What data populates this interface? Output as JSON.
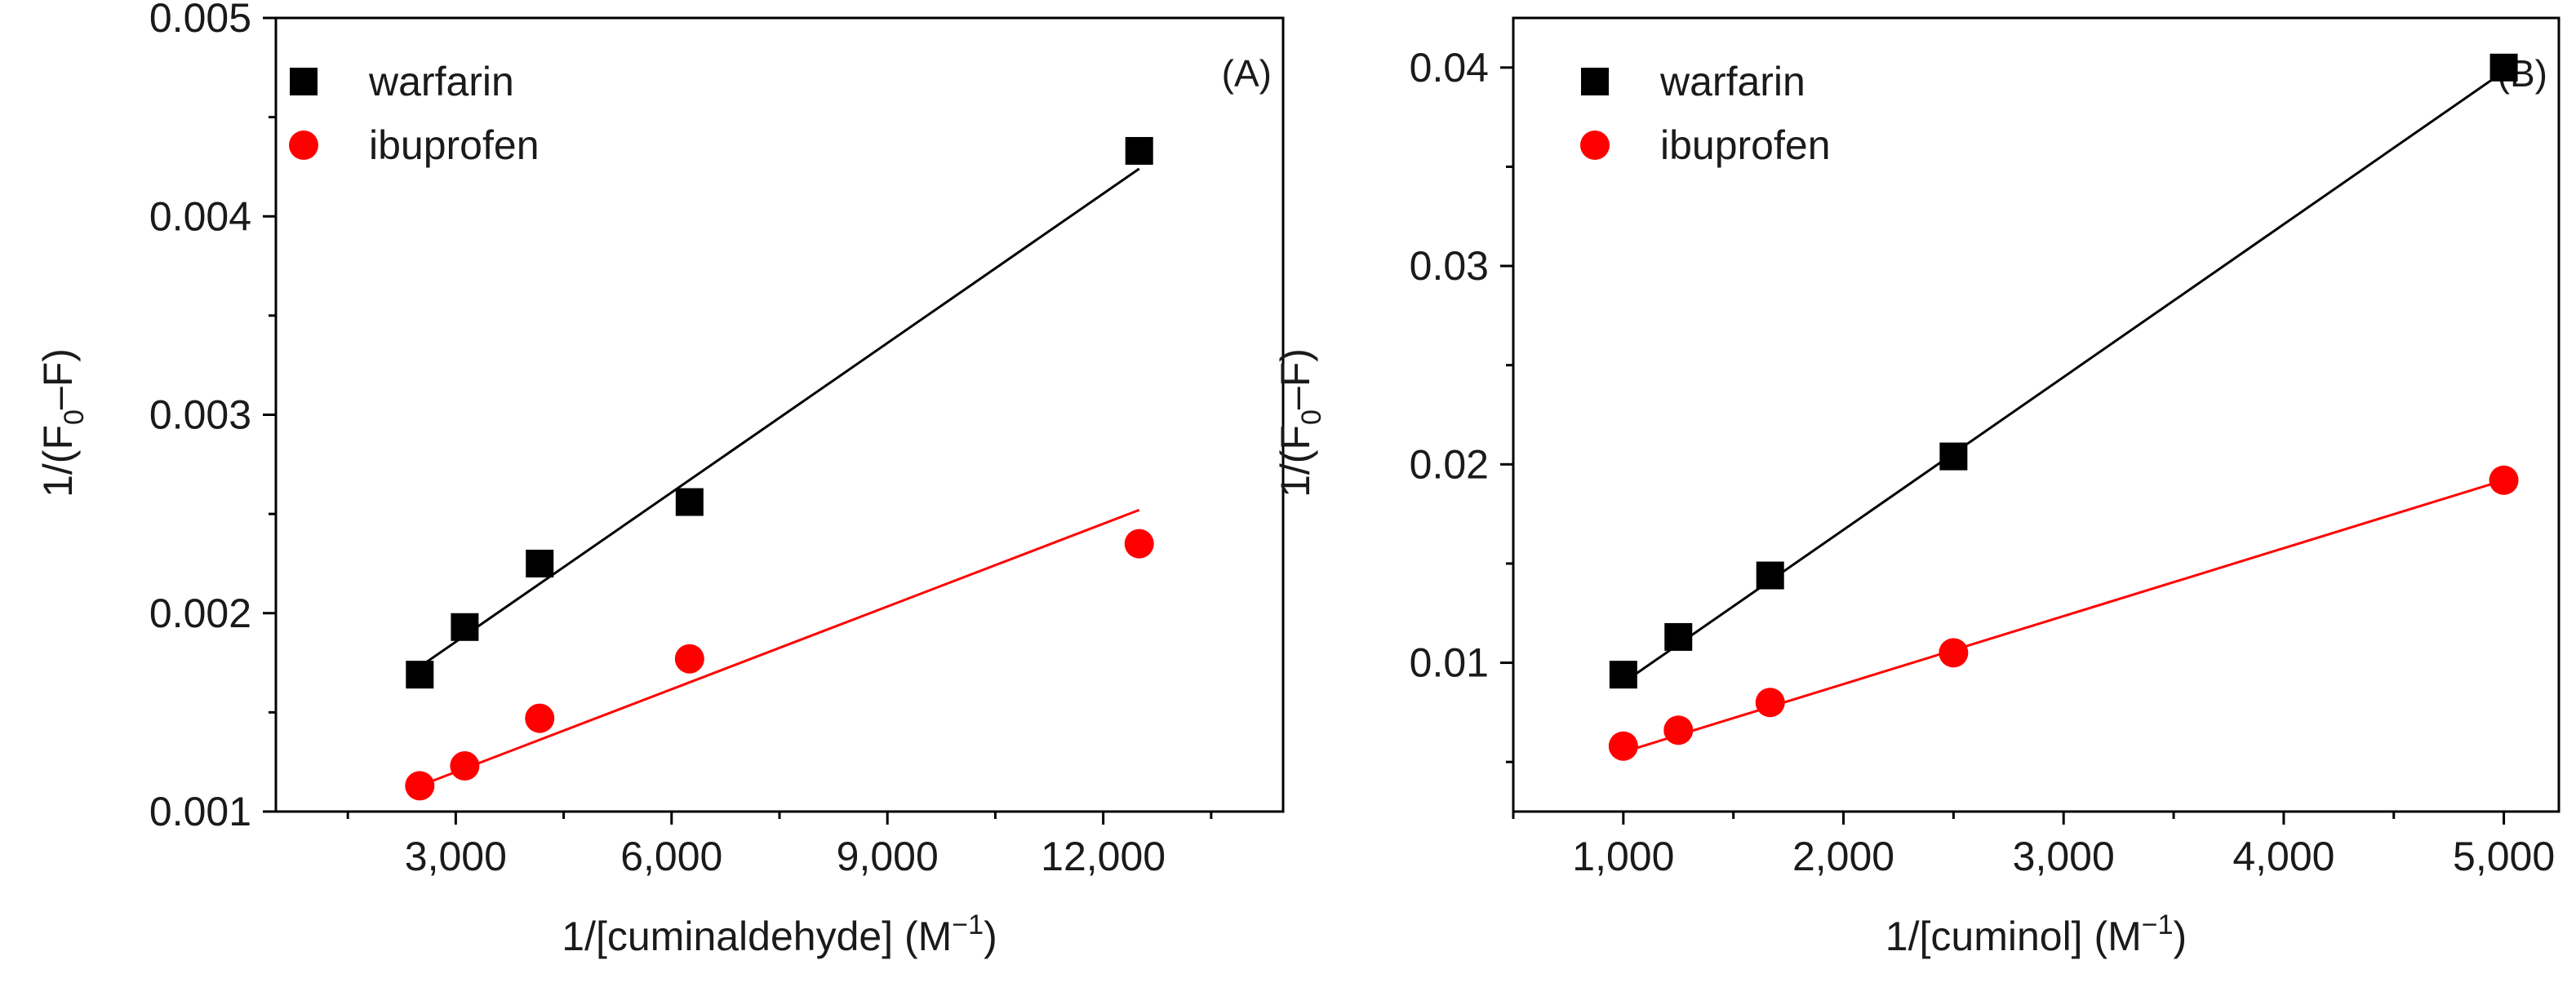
{
  "chart_data": [
    {
      "type": "scatter",
      "panel_label": "(A)",
      "xlabel": {
        "base": "1/[cuminaldehyde] (M",
        "sup": "−1",
        "close": ")"
      },
      "ylabel": {
        "base": "1/(F",
        "sub": "0",
        "rest": "–F)"
      },
      "xlim": [
        500,
        14500
      ],
      "ylim": [
        0.001,
        0.005
      ],
      "xticks": [
        3000,
        6000,
        9000,
        12000
      ],
      "xtick_labels": [
        "3,000",
        "6,000",
        "9,000",
        "12,000"
      ],
      "yticks": [
        0.001,
        0.002,
        0.003,
        0.004,
        0.005
      ],
      "ytick_labels": [
        "0.001",
        "0.002",
        "0.003",
        "0.004",
        "0.005"
      ],
      "legend_position": "top-left",
      "series": [
        {
          "name": "warfarin",
          "marker": "square",
          "color": "#000000",
          "x": [
            2500,
            3125,
            4167,
            6250,
            12500
          ],
          "y": [
            0.00169,
            0.00193,
            0.00225,
            0.00256,
            0.00433
          ],
          "fit": {
            "x": [
              2500,
              12500
            ],
            "y": [
              0.00173,
              0.00424
            ]
          }
        },
        {
          "name": "ibuprofen",
          "marker": "circle",
          "color": "#ff0000",
          "x": [
            2500,
            3125,
            4167,
            6250,
            12500
          ],
          "y": [
            0.00113,
            0.00123,
            0.00147,
            0.00177,
            0.00235
          ],
          "fit": {
            "x": [
              2500,
              12500
            ],
            "y": [
              0.00113,
              0.00252
            ]
          }
        }
      ]
    },
    {
      "type": "scatter",
      "panel_label": "(B)",
      "xlabel": {
        "base": "1/[cuminol] (M",
        "sup": "−1",
        "close": ")"
      },
      "ylabel": {
        "base": "1/(F",
        "sub": "0",
        "rest": "–F)"
      },
      "xlim": [
        500,
        5250
      ],
      "ylim": [
        0.0025,
        0.0425
      ],
      "xticks": [
        1000,
        2000,
        3000,
        4000,
        5000
      ],
      "xtick_labels": [
        "1,000",
        "2,000",
        "3,000",
        "4,000",
        "5,000"
      ],
      "yticks": [
        0.01,
        0.02,
        0.03,
        0.04
      ],
      "ytick_labels": [
        "0.01",
        "0.02",
        "0.03",
        "0.04"
      ],
      "legend_position": "top-left",
      "series": [
        {
          "name": "warfarin",
          "marker": "square",
          "color": "#000000",
          "x": [
            1000,
            1250,
            1667,
            2500,
            5000
          ],
          "y": [
            0.0094,
            0.0113,
            0.0144,
            0.0204,
            0.04
          ],
          "fit": {
            "x": [
              1000,
              5000
            ],
            "y": [
              0.009,
              0.0398
            ]
          }
        },
        {
          "name": "ibuprofen",
          "marker": "circle",
          "color": "#ff0000",
          "x": [
            1000,
            1250,
            1667,
            2500,
            5000
          ],
          "y": [
            0.0058,
            0.0066,
            0.008,
            0.0105,
            0.0192
          ],
          "fit": {
            "x": [
              1000,
              5000
            ],
            "y": [
              0.0055,
              0.0192
            ]
          }
        }
      ]
    }
  ]
}
